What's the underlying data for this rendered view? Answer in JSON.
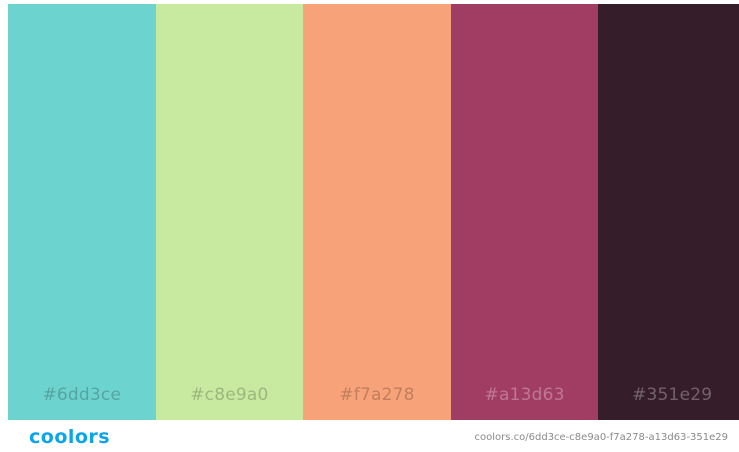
{
  "palette": {
    "colors": [
      {
        "hex": "#6dd3ce",
        "label": "#6dd3ce"
      },
      {
        "hex": "#c8e9a0",
        "label": "#c8e9a0"
      },
      {
        "hex": "#f7a278",
        "label": "#f7a278"
      },
      {
        "hex": "#a13d63",
        "label": "#a13d63"
      },
      {
        "hex": "#351e29",
        "label": "#351e29"
      }
    ]
  },
  "footer": {
    "logo": "coolors",
    "logo_color": "#0ba5e9",
    "url": "coolors.co/6dd3ce-c8e9a0-f7a278-a13d63-351e29"
  }
}
